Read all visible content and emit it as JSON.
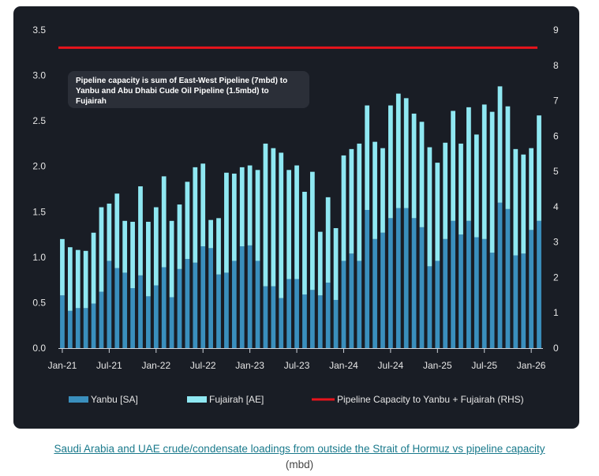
{
  "chart_data": {
    "type": "bar",
    "stacked": true,
    "categories": [
      "Jan-21",
      "Feb-21",
      "Mar-21",
      "Apr-21",
      "May-21",
      "Jun-21",
      "Jul-21",
      "Aug-21",
      "Sep-21",
      "Oct-21",
      "Nov-21",
      "Dec-21",
      "Jan-22",
      "Feb-22",
      "Mar-22",
      "Apr-22",
      "May-22",
      "Jun-22",
      "Jul-22",
      "Aug-22",
      "Sep-22",
      "Oct-22",
      "Nov-22",
      "Dec-22",
      "Jan-23",
      "Feb-23",
      "Mar-23",
      "Apr-23",
      "May-23",
      "Jun-23",
      "Jul-23",
      "Aug-23",
      "Sep-23",
      "Oct-23",
      "Nov-23",
      "Dec-23",
      "Jan-24",
      "Feb-24",
      "Mar-24",
      "Apr-24",
      "May-24",
      "Jun-24",
      "Jul-24",
      "Aug-24",
      "Sep-24",
      "Oct-24",
      "Nov-24",
      "Dec-24",
      "Jan-25",
      "Feb-25",
      "Mar-25",
      "Apr-25",
      "May-25",
      "Jun-25",
      "Jul-25",
      "Aug-25",
      "Sep-25",
      "Oct-25",
      "Nov-25",
      "Dec-25",
      "Jan-26",
      "Feb-26"
    ],
    "series": [
      {
        "name": "Yanbu [SA]",
        "color": "#3a8fbd",
        "values": [
          0.58,
          0.41,
          0.44,
          0.44,
          0.49,
          0.62,
          0.96,
          0.88,
          0.83,
          0.66,
          0.8,
          0.57,
          0.69,
          0.89,
          0.56,
          0.87,
          0.98,
          0.94,
          1.12,
          1.1,
          0.81,
          0.83,
          0.96,
          1.12,
          1.13,
          0.96,
          0.68,
          0.68,
          0.55,
          0.76,
          0.76,
          0.59,
          0.64,
          0.58,
          0.72,
          0.53,
          0.96,
          1.04,
          0.96,
          1.52,
          1.2,
          1.27,
          1.43,
          1.54,
          1.54,
          1.43,
          1.33,
          0.9,
          0.96,
          1.2,
          1.4,
          1.25,
          1.4,
          1.22,
          1.2,
          1.05,
          1.6,
          1.53,
          1.02,
          1.04,
          1.3,
          1.4
        ]
      },
      {
        "name": "Fujairah [AE]",
        "color": "#8fe8f2",
        "values": [
          0.62,
          0.7,
          0.64,
          0.63,
          0.78,
          0.93,
          0.63,
          0.82,
          0.57,
          0.73,
          0.98,
          0.82,
          0.86,
          1.0,
          0.84,
          0.71,
          0.85,
          1.05,
          0.91,
          0.31,
          0.62,
          1.1,
          0.96,
          0.87,
          0.88,
          1.0,
          1.57,
          1.52,
          1.6,
          1.2,
          1.25,
          1.13,
          1.3,
          0.7,
          0.94,
          0.79,
          1.16,
          1.15,
          1.29,
          1.15,
          1.07,
          0.93,
          1.24,
          1.26,
          1.21,
          1.15,
          1.16,
          1.31,
          1.08,
          1.06,
          1.21,
          1.0,
          1.25,
          1.13,
          1.48,
          1.55,
          1.28,
          1.13,
          1.17,
          1.09,
          0.9,
          1.16
        ]
      }
    ],
    "line": {
      "name": "Pipeline Capacity to Yanbu + Fujairah (RHS)",
      "value": 8.5,
      "axis": "right",
      "color": "#e8141c"
    },
    "x_tick_labels": [
      "Jan-21",
      "Jul-21",
      "Jan-22",
      "Jul-22",
      "Jan-23",
      "Jul-23",
      "Jan-24",
      "Jul-24",
      "Jan-25",
      "Jul-25",
      "Jan-26"
    ],
    "y_left": {
      "min": 0,
      "max": 3.5,
      "ticks": [
        "0.0",
        "0.5",
        "1.0",
        "1.5",
        "2.0",
        "2.5",
        "3.0",
        "3.5"
      ]
    },
    "y_right": {
      "min": 0,
      "max": 9,
      "ticks": [
        "0",
        "1",
        "2",
        "3",
        "4",
        "5",
        "6",
        "7",
        "8",
        "9"
      ]
    },
    "annotation": "Pipeline capacity is sum of East-West Pipeline (7mbd) to Yanbu and Abu Dhabi Cude Oil Pipeline (1.5mbd) to Fujairah",
    "legend": [
      "Yanbu [SA]",
      "Fujairah [AE]",
      "Pipeline Capacity to Yanbu + Fujairah (RHS)"
    ],
    "legend_position": "bottom"
  },
  "caption": {
    "link_text": "Saudi Arabia and UAE crude/condensate loadings from outside the Strait of Hormuz vs pipeline capacity",
    "units": "(mbd)"
  },
  "colors": {
    "background": "#191d25",
    "axis_text": "#e6e6e6",
    "annotation_bg": "#2b2f38"
  }
}
